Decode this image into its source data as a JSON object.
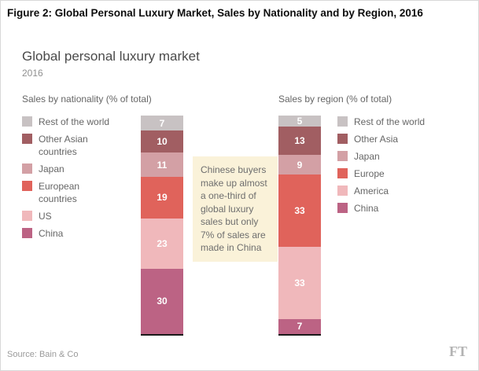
{
  "figure_title": "Figure 2: Global Personal Luxury Market, Sales by Nationality and by Region, 2016",
  "chart": {
    "title": "Global personal luxury market",
    "subtitle": "2016",
    "source": "Source: Bain & Co",
    "brand": "FT"
  },
  "annotation": "Chinese buyers make up almost a one-third of global luxury sales but only 7% of sales are made in China",
  "chart_data": [
    {
      "type": "bar",
      "stacked": true,
      "title": "Sales by nationality (% of total)",
      "legend_position": "left",
      "units": "% of total",
      "total": 100,
      "segments_top_to_bottom": [
        {
          "label": "Rest of the world",
          "value": 7,
          "color": "#c8c2c3"
        },
        {
          "label": "Other Asian countries",
          "value": 10,
          "color": "#a15e62"
        },
        {
          "label": "Japan",
          "value": 11,
          "color": "#d3a0a5"
        },
        {
          "label": "European countries",
          "value": 19,
          "color": "#e0635b"
        },
        {
          "label": "US",
          "value": 23,
          "color": "#f0b8bb"
        },
        {
          "label": "China",
          "value": 30,
          "color": "#bc6384"
        }
      ]
    },
    {
      "type": "bar",
      "stacked": true,
      "title": "Sales by region (% of total)",
      "legend_position": "right",
      "units": "% of total",
      "total": 100,
      "segments_top_to_bottom": [
        {
          "label": "Rest of the world",
          "value": 5,
          "color": "#c8c2c3"
        },
        {
          "label": "Other Asia",
          "value": 13,
          "color": "#a15e62"
        },
        {
          "label": "Japan",
          "value": 9,
          "color": "#d3a0a5"
        },
        {
          "label": "Europe",
          "value": 33,
          "color": "#e0635b"
        },
        {
          "label": "America",
          "value": 33,
          "color": "#f0b8bb"
        },
        {
          "label": "China",
          "value": 7,
          "color": "#bc6384"
        }
      ]
    }
  ]
}
